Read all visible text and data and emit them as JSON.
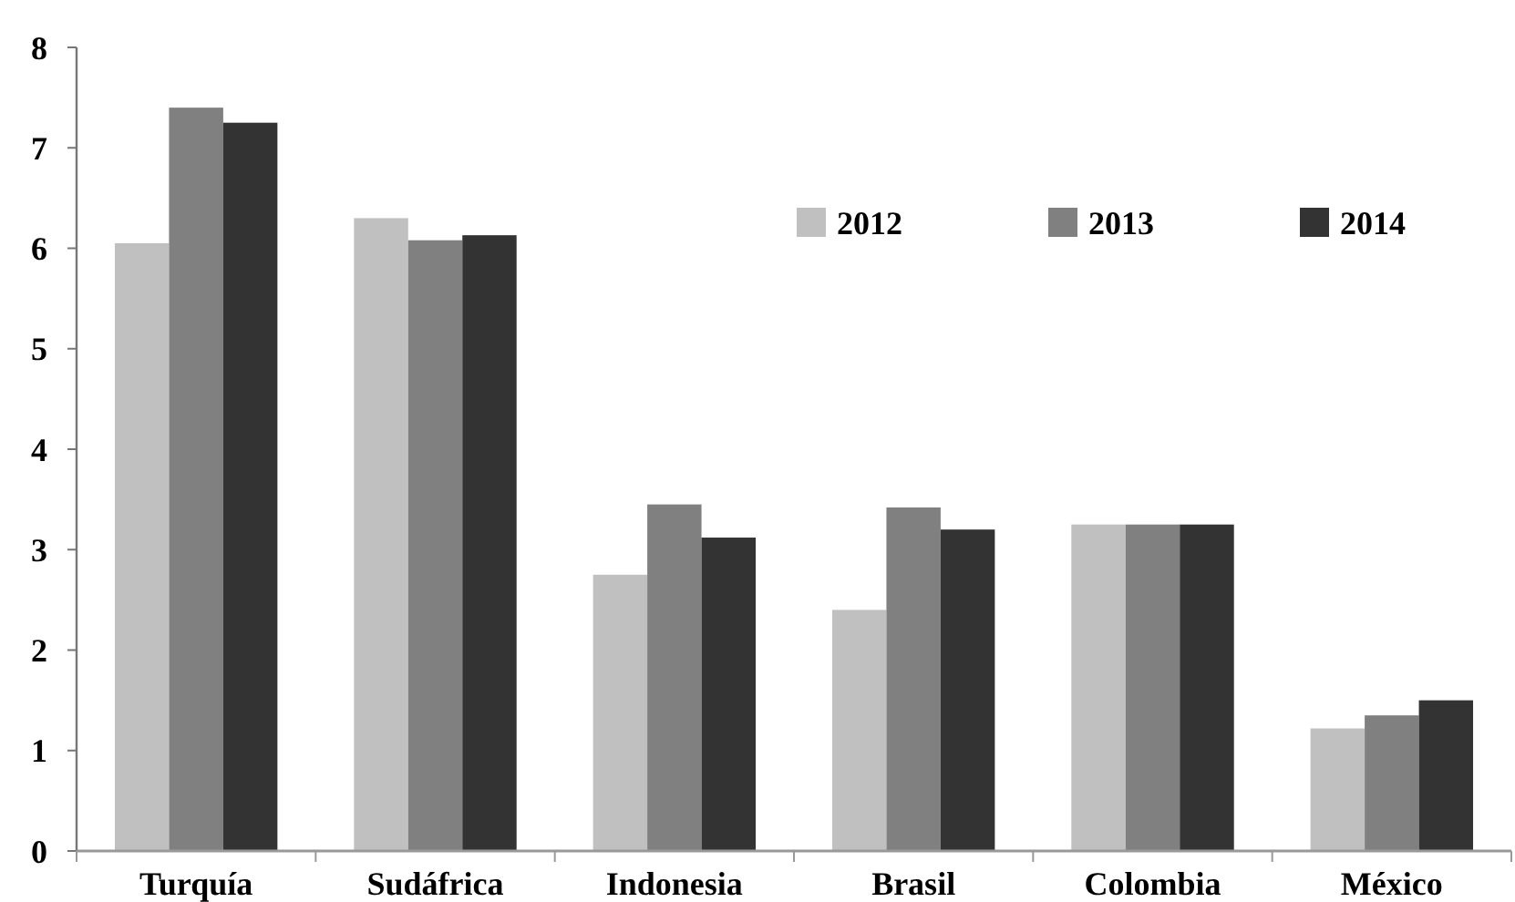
{
  "chart_data": {
    "type": "bar",
    "categories": [
      "Turquía",
      "Sudáfrica",
      "Indonesia",
      "Brasil",
      "Colombia",
      "México"
    ],
    "series": [
      {
        "name": "2012",
        "color": "#c0c0c0",
        "values": [
          6.05,
          6.3,
          2.75,
          2.4,
          3.25,
          1.22
        ]
      },
      {
        "name": "2013",
        "color": "#808080",
        "values": [
          7.4,
          6.08,
          3.45,
          3.42,
          3.25,
          1.35
        ]
      },
      {
        "name": "2014",
        "color": "#333333",
        "values": [
          7.25,
          6.13,
          3.12,
          3.2,
          3.25,
          1.5
        ]
      }
    ],
    "ylim": [
      0,
      8
    ],
    "yticks": [
      0,
      1,
      2,
      3,
      4,
      5,
      6,
      7,
      8
    ],
    "legend": "top right",
    "grid": false
  }
}
